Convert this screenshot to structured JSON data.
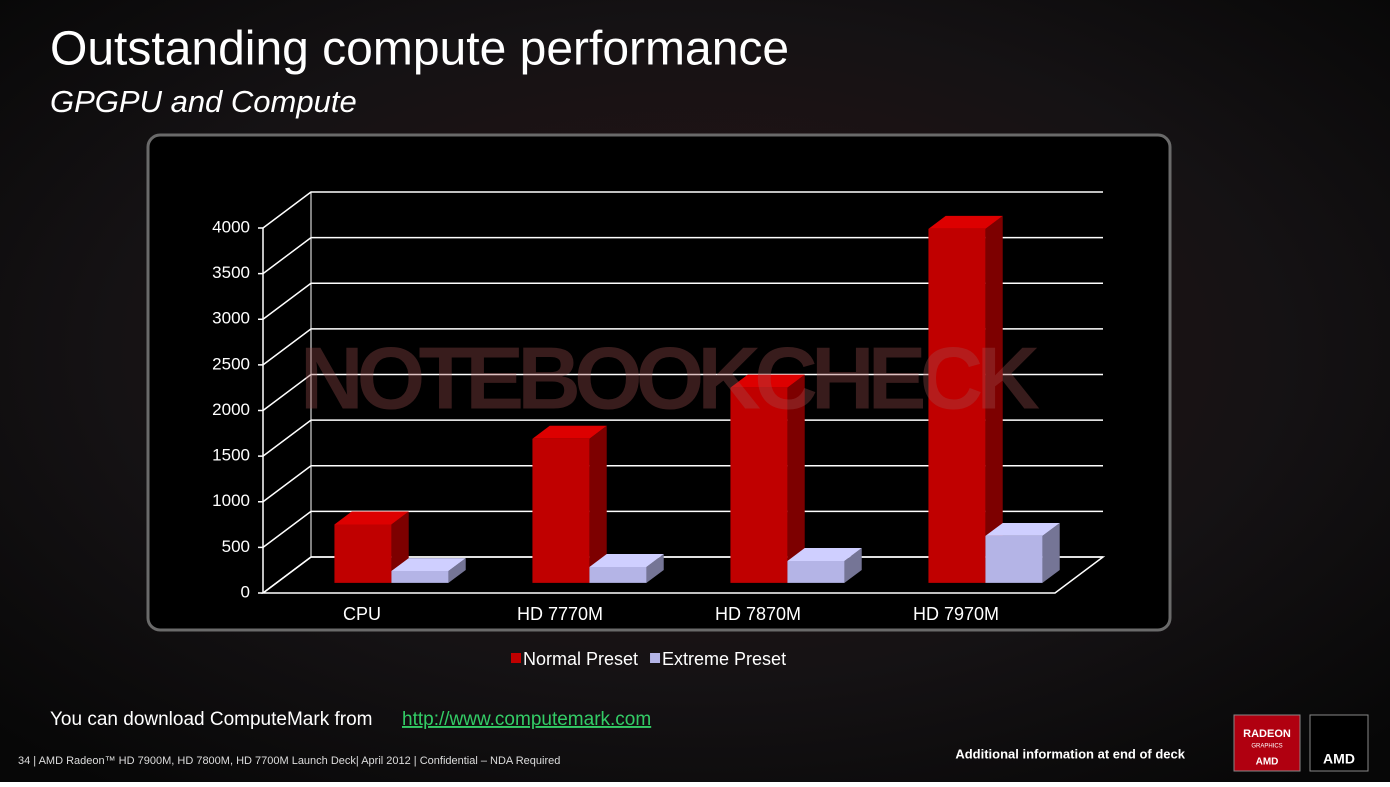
{
  "slide": {
    "title": "Outstanding compute performance",
    "subtitle": "GPGPU and Compute",
    "download_text": "You can download ComputeMark from",
    "download_link": "http://www.computemark.com",
    "footer": "34  |  AMD Radeon™ HD 7900M, HD 7800M, HD 7700M Launch Deck|  April  2012  |  Confidential – NDA Required",
    "additional_info": "Additional information at end of deck",
    "badge_line1": "RADEON",
    "badge_line2": "GRAPHICS",
    "badge_brand": "AMD",
    "brand": "AMD",
    "watermark": "NOTEBOOKCHECK"
  },
  "chart_data": {
    "type": "bar3d",
    "categories": [
      "CPU",
      "HD 7770M",
      "HD 7870M",
      "HD 7970M"
    ],
    "series": [
      {
        "name": "Normal Preset",
        "color": "#c00000",
        "values": [
          640,
          1580,
          2140,
          3880
        ]
      },
      {
        "name": "Extreme Preset",
        "color": "#b4b4e6",
        "values": [
          130,
          175,
          240,
          515
        ]
      }
    ],
    "ylim": [
      0,
      4000
    ],
    "yticks": [
      0,
      500,
      1000,
      1500,
      2000,
      2500,
      3000,
      3500,
      4000
    ],
    "grid": true
  }
}
